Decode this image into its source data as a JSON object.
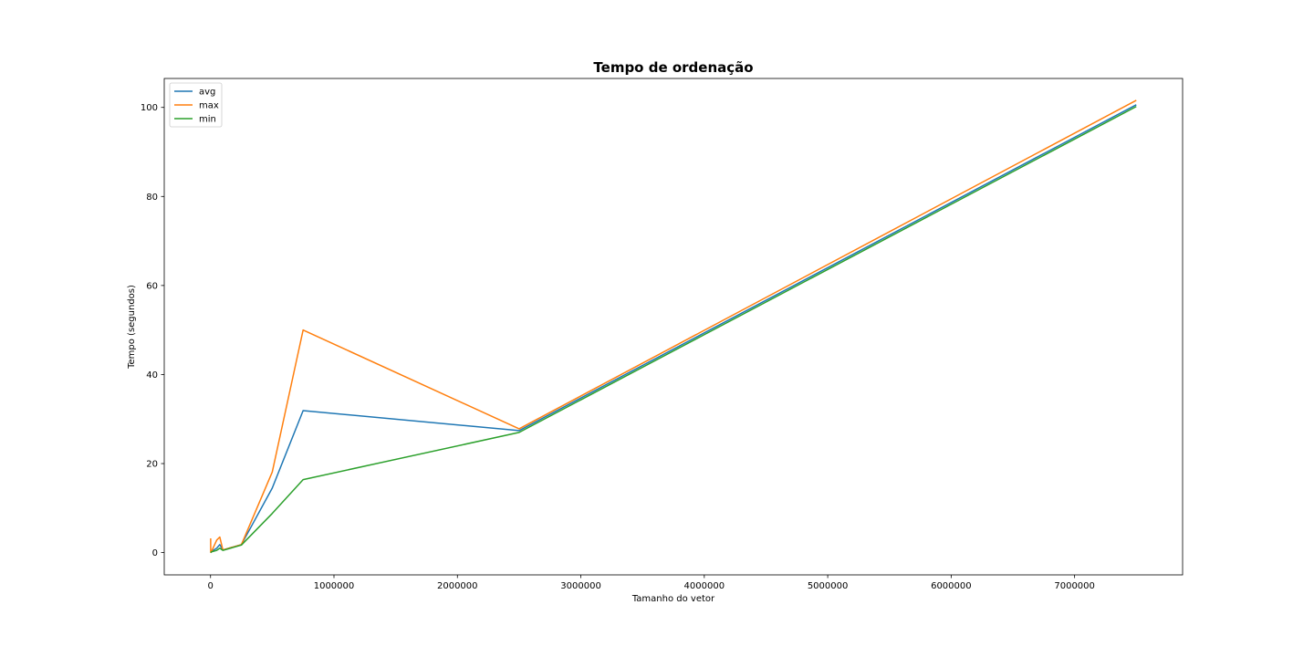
{
  "chart_data": {
    "type": "line",
    "title": "Tempo de ordenação",
    "xlabel": "Tamanho do vetor",
    "ylabel": "Tempo (segundos)",
    "xlim": [
      -375000,
      7875000
    ],
    "ylim": [
      -5,
      106.5
    ],
    "xticks": [
      0,
      1000000,
      2000000,
      3000000,
      4000000,
      5000000,
      6000000,
      7000000
    ],
    "xtick_labels": [
      "0",
      "1000000",
      "2000000",
      "3000000",
      "4000000",
      "5000000",
      "6000000",
      "7000000"
    ],
    "yticks": [
      0,
      20,
      40,
      60,
      80,
      100
    ],
    "ytick_labels": [
      "0",
      "20",
      "40",
      "60",
      "80",
      "100"
    ],
    "grid": false,
    "legend_position": "top-left",
    "series": [
      {
        "name": "avg",
        "color": "#1f77b4",
        "x": [
          1000,
          10000,
          50000,
          75000,
          100000,
          250000,
          500000,
          750000,
          2500000,
          7500000
        ],
        "y": [
          0.05,
          0.3,
          1.0,
          1.8,
          0.6,
          1.8,
          14.5,
          31.9,
          27.4,
          100.6
        ]
      },
      {
        "name": "max",
        "color": "#ff7f0e",
        "x": [
          1000,
          1500,
          10000,
          50000,
          75000,
          100000,
          250000,
          500000,
          750000,
          2500000,
          7500000
        ],
        "y": [
          3.2,
          0.05,
          0.4,
          2.8,
          3.5,
          0.6,
          1.8,
          18.1,
          50.0,
          27.8,
          101.6
        ]
      },
      {
        "name": "min",
        "color": "#2ca02c",
        "x": [
          1000,
          10000,
          50000,
          75000,
          100000,
          250000,
          500000,
          750000,
          2500000,
          7500000
        ],
        "y": [
          0.0,
          0.2,
          0.5,
          1.0,
          0.5,
          1.7,
          8.8,
          16.4,
          27.0,
          100.2
        ]
      }
    ]
  }
}
